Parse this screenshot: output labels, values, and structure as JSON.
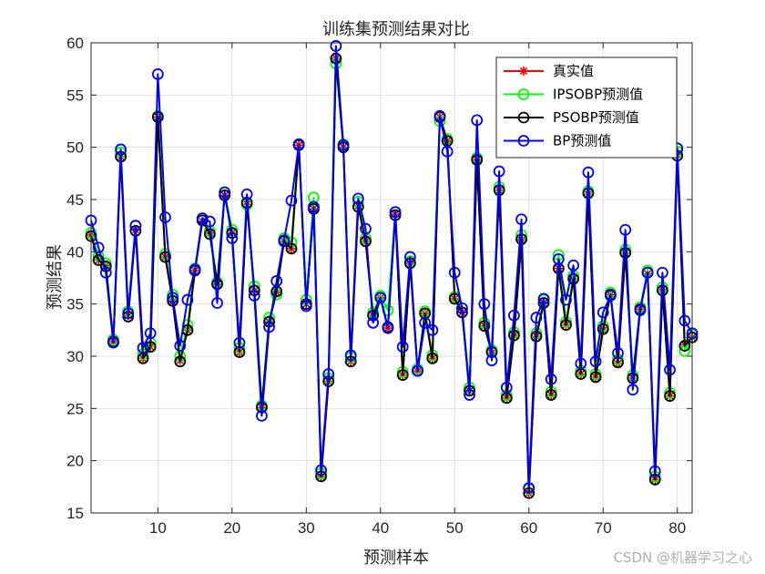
{
  "chart_data": {
    "type": "line",
    "title": "训练集预测结果对比",
    "xlabel": "预测样本",
    "ylabel": "预测结果",
    "xlim": [
      1,
      82
    ],
    "ylim": [
      15,
      60
    ],
    "xticks": [
      10,
      20,
      30,
      40,
      50,
      60,
      70,
      80
    ],
    "yticks": [
      15,
      20,
      25,
      30,
      35,
      40,
      45,
      50,
      55,
      60
    ],
    "grid": true,
    "legend_position": "top-right",
    "x": [
      1,
      2,
      3,
      4,
      5,
      6,
      7,
      8,
      9,
      10,
      11,
      12,
      13,
      14,
      15,
      16,
      17,
      18,
      19,
      20,
      21,
      22,
      23,
      24,
      25,
      26,
      27,
      28,
      29,
      30,
      31,
      32,
      33,
      34,
      35,
      36,
      37,
      38,
      39,
      40,
      41,
      42,
      43,
      44,
      45,
      46,
      47,
      48,
      49,
      50,
      51,
      52,
      53,
      54,
      55,
      56,
      57,
      58,
      59,
      60,
      61,
      62,
      63,
      64,
      65,
      66,
      67,
      68,
      69,
      70,
      71,
      72,
      73,
      74,
      75,
      76,
      77,
      78,
      79,
      80,
      81,
      82
    ],
    "series": [
      {
        "name": "真实值",
        "color": "#ff0000",
        "marker": "asterisk",
        "values": [
          41.6,
          39.2,
          38.7,
          31.4,
          49.1,
          33.9,
          42.1,
          29.8,
          30.9,
          52.9,
          39.5,
          35.2,
          29.6,
          32.5,
          38.2,
          42.9,
          41.8,
          36.9,
          45.4,
          41.8,
          30.4,
          44.8,
          36.3,
          25.1,
          33.3,
          36.1,
          41.0,
          40.3,
          50.2,
          35.0,
          44.1,
          18.5,
          27.6,
          58.5,
          50.0,
          29.5,
          44.4,
          41.0,
          33.9,
          35.6,
          32.7,
          43.6,
          28.2,
          38.9,
          28.6,
          34.1,
          29.8,
          52.9,
          50.6,
          35.5,
          34.2,
          26.7,
          48.8,
          32.9,
          30.3,
          45.9,
          26.0,
          32.0,
          41.1,
          16.9,
          31.9,
          35.1,
          26.3,
          38.4,
          33.0,
          37.4,
          28.3,
          45.5,
          28.0,
          32.5,
          35.9,
          29.3,
          39.9,
          27.9,
          34.5,
          37.9,
          18.2,
          36.4,
          26.2,
          49.3,
          31.1,
          31.8
        ]
      },
      {
        "name": "IPSOBP预测值",
        "color": "#00ff00",
        "marker": "circle",
        "values": [
          41.8,
          39.6,
          38.9,
          31.6,
          49.5,
          34.3,
          42.5,
          30.2,
          31.3,
          53.0,
          39.8,
          35.9,
          30.0,
          33.0,
          38.4,
          43.2,
          42.0,
          37.1,
          45.7,
          42.1,
          30.8,
          44.5,
          36.7,
          25.3,
          33.7,
          35.9,
          41.3,
          40.9,
          50.3,
          35.4,
          45.2,
          18.8,
          27.9,
          58.0,
          50.3,
          29.9,
          44.8,
          41.3,
          34.2,
          35.8,
          34.4,
          43.8,
          28.5,
          39.1,
          28.8,
          34.3,
          30.1,
          52.5,
          50.8,
          35.7,
          34.6,
          27.0,
          49.0,
          33.2,
          30.6,
          46.2,
          26.3,
          32.3,
          41.6,
          17.3,
          32.2,
          35.4,
          26.6,
          39.7,
          33.3,
          37.7,
          28.6,
          45.8,
          28.3,
          32.9,
          36.1,
          29.7,
          40.2,
          28.2,
          34.7,
          38.2,
          18.5,
          36.6,
          26.5,
          49.6,
          30.5,
          32.1
        ]
      },
      {
        "name": "PSOBP预测值",
        "color": "#000000",
        "marker": "circle",
        "values": [
          41.5,
          39.2,
          38.6,
          31.4,
          49.1,
          33.8,
          42.0,
          29.8,
          30.9,
          52.9,
          39.5,
          35.3,
          29.5,
          32.5,
          38.2,
          43.0,
          41.7,
          36.9,
          45.4,
          41.8,
          30.4,
          44.7,
          36.3,
          25.1,
          33.3,
          36.2,
          41.0,
          40.3,
          50.2,
          35.0,
          44.1,
          18.5,
          27.6,
          58.5,
          50.0,
          29.5,
          44.3,
          41.0,
          33.9,
          35.6,
          32.7,
          43.5,
          28.2,
          38.9,
          28.6,
          34.1,
          29.8,
          52.9,
          50.6,
          35.5,
          34.2,
          26.7,
          48.8,
          32.9,
          30.4,
          45.9,
          26.0,
          32.0,
          41.2,
          16.9,
          31.9,
          35.1,
          26.3,
          38.4,
          33.0,
          37.4,
          28.3,
          45.6,
          28.0,
          32.6,
          35.9,
          29.4,
          39.9,
          27.9,
          34.5,
          38.0,
          18.2,
          36.3,
          26.2,
          49.2,
          31.0,
          31.8
        ]
      },
      {
        "name": "BP预测值",
        "color": "#0000ff",
        "marker": "circle",
        "values": [
          43.0,
          40.4,
          38.0,
          31.3,
          49.8,
          34.1,
          42.5,
          30.8,
          32.2,
          57.0,
          43.3,
          35.6,
          31.0,
          35.4,
          38.3,
          43.2,
          42.9,
          35.1,
          45.7,
          41.3,
          31.3,
          45.5,
          35.8,
          24.3,
          32.8,
          37.2,
          41.1,
          44.9,
          50.3,
          34.8,
          44.3,
          19.1,
          28.3,
          59.7,
          50.2,
          30.1,
          45.1,
          42.2,
          33.2,
          35.6,
          32.8,
          43.8,
          30.9,
          39.5,
          28.6,
          33.2,
          32.5,
          53.0,
          49.6,
          38.0,
          34.6,
          26.3,
          52.6,
          35.0,
          29.6,
          47.7,
          27.0,
          33.9,
          43.1,
          17.4,
          33.7,
          35.5,
          27.8,
          39.3,
          35.4,
          38.7,
          29.3,
          47.6,
          29.5,
          34.2,
          35.8,
          30.3,
          42.1,
          26.8,
          34.4,
          38.0,
          19.0,
          38.0,
          28.7,
          49.9,
          33.4,
          32.2
        ]
      }
    ]
  },
  "watermark": "CSDN @机器学习之心"
}
